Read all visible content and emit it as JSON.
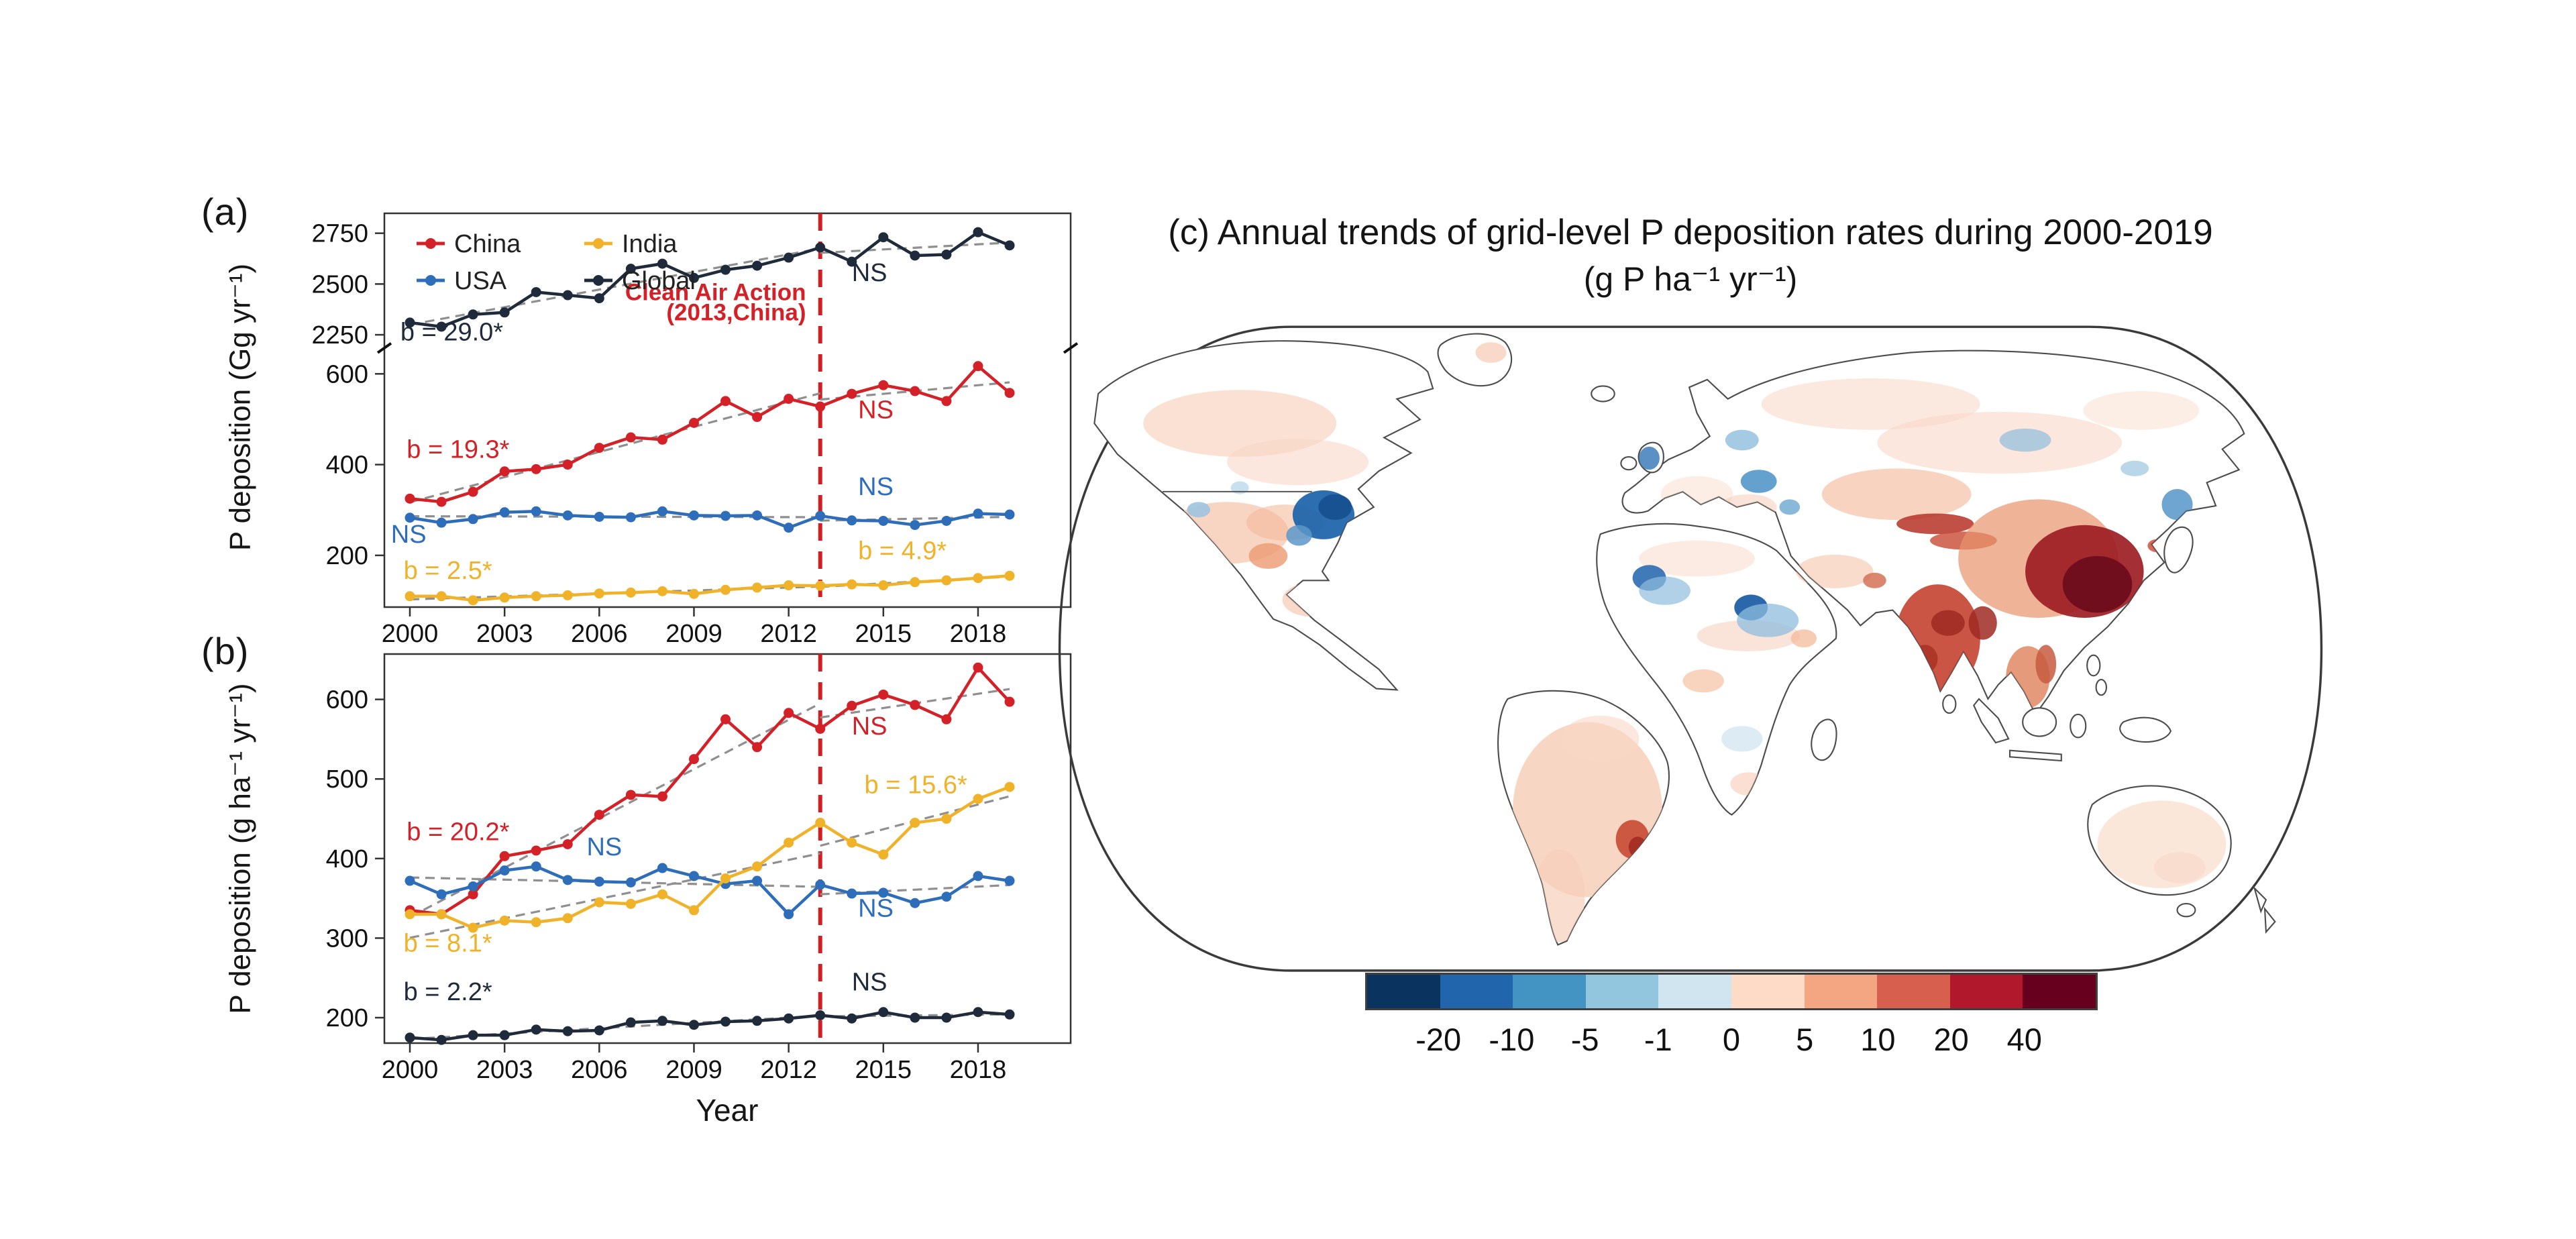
{
  "chart_data": [
    {
      "id": "panel_a",
      "type": "line",
      "panel_label": "(a)",
      "ylabel": "P deposition (Gg yr⁻¹)",
      "xlabel": "",
      "x": [
        2000,
        2001,
        2002,
        2003,
        2004,
        2005,
        2006,
        2007,
        2008,
        2009,
        2010,
        2011,
        2012,
        2013,
        2014,
        2015,
        2016,
        2017,
        2018,
        2019
      ],
      "x_ticks": [
        2000,
        2003,
        2006,
        2009,
        2012,
        2015,
        2018
      ],
      "axis_break": true,
      "segments": {
        "top": {
          "ylim": [
            2185,
            2848
          ],
          "ticks": [
            2250,
            2500,
            2750
          ]
        },
        "bot": {
          "ylim": [
            86,
            657
          ],
          "ticks": [
            200,
            400,
            600
          ]
        }
      },
      "vline": {
        "x": 2013,
        "color": "#cf1f24"
      },
      "trend_break_year": 2013,
      "trend_color": "#8f8f8f",
      "series": [
        {
          "name": "China",
          "color": "#d42027",
          "segment": "bot",
          "values": [
            325,
            318,
            340,
            385,
            390,
            400,
            437,
            460,
            455,
            492,
            540,
            505,
            545,
            528,
            556,
            575,
            562,
            540,
            617,
            558
          ]
        },
        {
          "name": "USA",
          "color": "#2d6db9",
          "segment": "bot",
          "values": [
            283,
            272,
            280,
            295,
            297,
            288,
            285,
            284,
            297,
            288,
            287,
            288,
            261,
            287,
            277,
            276,
            267,
            276,
            292,
            290
          ]
        },
        {
          "name": "India",
          "color": "#f0b228",
          "segment": "bot",
          "values": [
            110,
            110,
            101,
            107,
            110,
            112,
            116,
            118,
            121,
            115,
            124,
            129,
            134,
            133,
            136,
            134,
            141,
            145,
            150,
            155
          ]
        },
        {
          "name": "Global",
          "color": "#1f2a3a",
          "segment": "top",
          "values": [
            2310,
            2290,
            2350,
            2360,
            2460,
            2445,
            2430,
            2575,
            2600,
            2530,
            2570,
            2590,
            2630,
            2680,
            2610,
            2730,
            2640,
            2645,
            2755,
            2690
          ]
        }
      ],
      "legend": {
        "order": [
          "China",
          "India",
          "USA",
          "Global"
        ]
      },
      "annotations": [
        {
          "text": "b = 29.0*",
          "x": 1999.7,
          "y": 2222,
          "seg": "top",
          "color": "#1f2a3a"
        },
        {
          "text": "NS",
          "x": 2014.0,
          "y": 2515,
          "seg": "top",
          "color": "#1f2a3a"
        },
        {
          "text": "Clean Air Action",
          "x": 2012.55,
          "y": 2420,
          "seg": "top",
          "color": "#d42027",
          "anchor": "end",
          "bold": true,
          "size": 35
        },
        {
          "text": "(2013,China)",
          "x": 2012.55,
          "y": 2322,
          "seg": "top",
          "color": "#d42027",
          "anchor": "end",
          "bold": true,
          "size": 35
        },
        {
          "text": "b = 19.3*",
          "x": 1999.9,
          "y": 415,
          "seg": "bot",
          "color": "#d42027"
        },
        {
          "text": "NS",
          "x": 2014.2,
          "y": 502,
          "seg": "bot",
          "color": "#d42027"
        },
        {
          "text": "NS",
          "x": 2014.2,
          "y": 333,
          "seg": "bot",
          "color": "#2d6db9"
        },
        {
          "text": "NS",
          "x": 1999.4,
          "y": 228,
          "seg": "bot",
          "color": "#2d6db9"
        },
        {
          "text": "b = 2.5*",
          "x": 1999.8,
          "y": 148,
          "seg": "bot",
          "color": "#f0b228"
        },
        {
          "text": "b = 4.9*",
          "x": 2014.2,
          "y": 192,
          "seg": "bot",
          "color": "#f0b228"
        }
      ]
    },
    {
      "id": "panel_b",
      "type": "line",
      "panel_label": "(b)",
      "ylabel": "P deposition (g ha⁻¹ yr⁻¹)",
      "xlabel": "Year",
      "x": [
        2000,
        2001,
        2002,
        2003,
        2004,
        2005,
        2006,
        2007,
        2008,
        2009,
        2010,
        2011,
        2012,
        2013,
        2014,
        2015,
        2016,
        2017,
        2018,
        2019
      ],
      "x_ticks": [
        2000,
        2003,
        2006,
        2009,
        2012,
        2015,
        2018
      ],
      "ylim": [
        168,
        657
      ],
      "yticks": [
        200,
        300,
        400,
        500,
        600
      ],
      "vline": {
        "x": 2013,
        "color": "#cf1f24"
      },
      "trend_break_year": 2013,
      "trend_color": "#8f8f8f",
      "series": [
        {
          "name": "China",
          "color": "#d42027",
          "values": [
            335,
            330,
            355,
            403,
            410,
            418,
            455,
            480,
            478,
            525,
            575,
            540,
            583,
            563,
            592,
            606,
            593,
            575,
            640,
            597
          ]
        },
        {
          "name": "USA",
          "color": "#2d6db9",
          "values": [
            372,
            355,
            365,
            385,
            390,
            373,
            371,
            370,
            388,
            378,
            368,
            372,
            330,
            367,
            356,
            357,
            344,
            352,
            378,
            372
          ]
        },
        {
          "name": "India",
          "color": "#f0b228",
          "values": [
            330,
            330,
            313,
            322,
            320,
            325,
            345,
            343,
            355,
            335,
            375,
            390,
            420,
            445,
            420,
            405,
            445,
            450,
            475,
            490
          ]
        },
        {
          "name": "Global",
          "color": "#1f2a3a",
          "values": [
            175,
            172,
            178,
            178,
            185,
            183,
            184,
            194,
            196,
            191,
            195,
            196,
            199,
            203,
            199,
            207,
            200,
            200,
            207,
            204
          ]
        }
      ],
      "annotations": [
        {
          "text": "b = 20.2*",
          "x": 1999.9,
          "y": 423,
          "color": "#d42027"
        },
        {
          "text": "NS",
          "x": 2005.6,
          "y": 404,
          "color": "#2d6db9"
        },
        {
          "text": "b = 15.6*",
          "x": 2014.4,
          "y": 482,
          "color": "#f0b228"
        },
        {
          "text": "NS",
          "x": 2014.0,
          "y": 556,
          "color": "#d42027"
        },
        {
          "text": "NS",
          "x": 2014.2,
          "y": 327,
          "color": "#2d6db9"
        },
        {
          "text": "b = 8.1*",
          "x": 1999.8,
          "y": 283,
          "color": "#f0b228"
        },
        {
          "text": "NS",
          "x": 2014.0,
          "y": 234,
          "color": "#1f2a3a"
        },
        {
          "text": "b = 2.2*",
          "x": 1999.8,
          "y": 222,
          "color": "#1f2a3a"
        }
      ]
    },
    {
      "id": "map_c",
      "type": "heatmap",
      "title": "(c) Annual trends of grid-level P deposition rates during 2000-2019",
      "subtitle": "(g P ha⁻¹ yr⁻¹)",
      "colorbar": {
        "colors": [
          "#0b3360",
          "#2166ac",
          "#4393c3",
          "#92c5de",
          "#d1e5f0",
          "#fddbc7",
          "#f4a582",
          "#d6604d",
          "#b2182b",
          "#67001f"
        ],
        "boundary_labels": [
          "-20",
          "-10",
          "-5",
          "-1",
          "0",
          "5",
          "10",
          "20",
          "40"
        ]
      },
      "map_highlights": [
        {
          "region": "Eastern China",
          "trend": "strong increase (> 40)",
          "color": "#6e0d1d"
        },
        {
          "region": "India / South Asia",
          "trend": "increase (10 to 40)",
          "color": "#c74634"
        },
        {
          "region": "Southeast Asia",
          "trend": "increase (5 to 20)",
          "color": "#e08a64"
        },
        {
          "region": "Northeastern USA",
          "trend": "decrease (-10 to -20)",
          "color": "#2166ac"
        },
        {
          "region": "Sahel / Central Africa",
          "trend": "decrease (-5 to -10)",
          "color": "#4a90c6"
        },
        {
          "region": "UK / Baltic / Eastern Europe",
          "trend": "decrease (-1 to -10)",
          "color": "#4a90c6"
        },
        {
          "region": "South America",
          "trend": "slight increase (0 to 5)",
          "color": "#f7cfba"
        },
        {
          "region": "Southeast Brazil",
          "trend": "increase (10 to 20)",
          "color": "#c64a33"
        },
        {
          "region": "Australia",
          "trend": "slight increase (0 to 5)",
          "color": "#fbe3d6"
        }
      ]
    }
  ]
}
